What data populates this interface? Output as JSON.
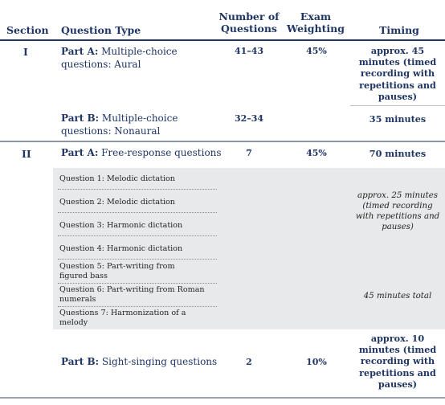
{
  "header": {
    "section": "Section",
    "question_type": "Question Type",
    "num_questions_line1": "Number of",
    "num_questions_line2": "Questions",
    "weighting_line1": "Exam",
    "weighting_line2": "Weighting",
    "timing": "Timing"
  },
  "section1": {
    "label": "I",
    "part_a": {
      "prefix": "Part A:",
      "title_1": "Multiple-choice",
      "title_2": "questions: Aural",
      "count": "41–43",
      "weighting": "45%",
      "timing_1": "approx. 45",
      "timing_2": "minutes (timed",
      "timing_3": "recording with",
      "timing_4": "repetitions and",
      "timing_5": "pauses)"
    },
    "part_b": {
      "prefix": "Part B:",
      "title_1": "Multiple-choice",
      "title_2": "questions: Nonaural",
      "count": "32–34",
      "timing": "35 minutes"
    }
  },
  "section2": {
    "label": "II",
    "part_a": {
      "prefix": "Part A:",
      "title": "Free-response questions",
      "count": "7",
      "weighting": "45%",
      "timing": "70 minutes",
      "questions": [
        [
          "Question 1: Melodic dictation"
        ],
        [
          "Question 2: Melodic dictation"
        ],
        [
          "Question 3: Harmonic dictation"
        ],
        [
          "Question 4: Harmonic dictation"
        ],
        [
          "Question 5: Part-writing from",
          "figured bass"
        ],
        [
          "Question 6: Part-writing from Roman",
          "numerals"
        ],
        [
          "Questions 7: Harmonization of a",
          "melody"
        ]
      ],
      "dictation_timing": [
        "approx. 25 minutes",
        "(timed recording",
        "with repetitions and",
        "pauses)"
      ],
      "writing_timing": "45 minutes total"
    },
    "part_b": {
      "prefix": "Part B:",
      "title": "Sight-singing questions",
      "count": "2",
      "weighting": "10%",
      "timing_1": "approx. 10",
      "timing_2": "minutes (timed",
      "timing_3": "recording with",
      "timing_4": "repetitions and",
      "timing_5": "pauses)"
    }
  }
}
